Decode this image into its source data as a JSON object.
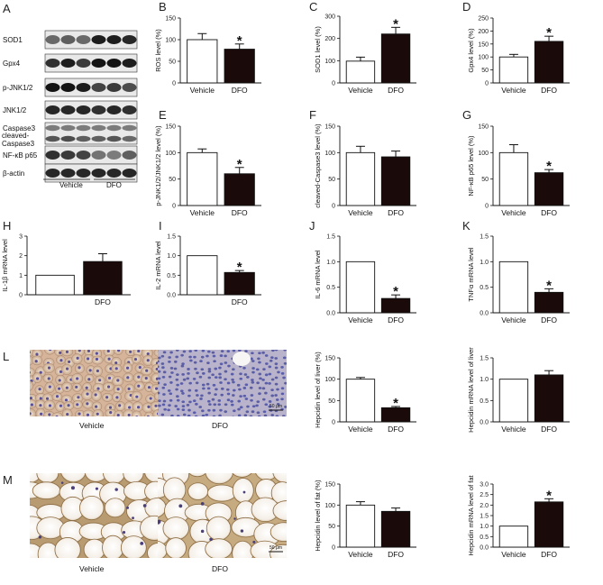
{
  "panel_labels": {
    "A": "A",
    "L": "L",
    "M": "M"
  },
  "blot": {
    "bands": [
      "SOD1",
      "Gpx4",
      "p-JNK1/2",
      "JNK1/2",
      "Caspase3",
      "cleaved-Caspase3",
      "NF-κB p65",
      "β-actin"
    ],
    "cleaved_line1": "cleaved-",
    "cleaved_line2": "Caspase3",
    "groups": [
      "Vehicle",
      "DFO"
    ]
  },
  "histology": {
    "L": {
      "left_label": "Vehicle",
      "right_label": "DFO",
      "scale": "50 μm"
    },
    "M": {
      "left_label": "Vehicle",
      "right_label": "DFO",
      "scale": "50 μm"
    }
  },
  "chart_data": [
    {
      "id": "B",
      "label": "B",
      "type": "bar",
      "categories": [
        "Vehicle",
        "DFO"
      ],
      "values": [
        100,
        78
      ],
      "errors": [
        14,
        12
      ],
      "significant": [
        false,
        true
      ],
      "ylabel": "ROS level (%)",
      "ylim": [
        0,
        150
      ],
      "yticks": [
        0,
        50,
        100,
        150
      ]
    },
    {
      "id": "C",
      "label": "C",
      "type": "bar",
      "categories": [
        "Vehicle",
        "DFO"
      ],
      "values": [
        98,
        220
      ],
      "errors": [
        18,
        30
      ],
      "significant": [
        false,
        true
      ],
      "ylabel": "SOD1 level (%)",
      "ylim": [
        0,
        300
      ],
      "yticks": [
        0,
        100,
        200,
        300
      ]
    },
    {
      "id": "D",
      "label": "D",
      "type": "bar",
      "categories": [
        "Vehicle",
        "DFO"
      ],
      "values": [
        100,
        160
      ],
      "errors": [
        10,
        20
      ],
      "significant": [
        false,
        true
      ],
      "ylabel": "Gpx4 level (%)",
      "ylim": [
        0,
        250
      ],
      "yticks": [
        0,
        50,
        100,
        150,
        200,
        250
      ]
    },
    {
      "id": "E",
      "label": "E",
      "type": "bar",
      "categories": [
        "Vehicle",
        "DFO"
      ],
      "values": [
        100,
        60
      ],
      "errors": [
        7,
        12
      ],
      "significant": [
        false,
        true
      ],
      "ylabel": "p-JNK1/2/JNK1/2 level (%)",
      "ylim": [
        0,
        150
      ],
      "yticks": [
        0,
        50,
        100,
        150
      ]
    },
    {
      "id": "F",
      "label": "F",
      "type": "bar",
      "categories": [
        "Vehicle",
        "DFO"
      ],
      "values": [
        100,
        92
      ],
      "errors": [
        12,
        11
      ],
      "significant": [
        false,
        false
      ],
      "ylabel": "cleaved-Caspase3 level (%)",
      "ylim": [
        0,
        150
      ],
      "yticks": [
        0,
        50,
        100,
        150
      ]
    },
    {
      "id": "G",
      "label": "G",
      "type": "bar",
      "categories": [
        "Vehicle",
        "DFO"
      ],
      "values": [
        100,
        62
      ],
      "errors": [
        15,
        6
      ],
      "significant": [
        false,
        true
      ],
      "ylabel": "NF-κB p65 level (%)",
      "ylim": [
        0,
        150
      ],
      "yticks": [
        0,
        50,
        100,
        150
      ]
    },
    {
      "id": "H",
      "label": "H",
      "type": "bar",
      "categories": [
        "",
        "DFO"
      ],
      "values": [
        1.0,
        1.7
      ],
      "errors": [
        0,
        0.4
      ],
      "significant": [
        false,
        false
      ],
      "ylabel": "IL-1β mRNA level",
      "ylim": [
        0,
        3
      ],
      "yticks": [
        0,
        1,
        2,
        3
      ]
    },
    {
      "id": "I",
      "label": "I",
      "type": "bar",
      "categories": [
        "",
        "DFO"
      ],
      "values": [
        1.0,
        0.57
      ],
      "errors": [
        0,
        0.05
      ],
      "significant": [
        false,
        true
      ],
      "ylabel": "IL-2 mRNA level",
      "ylim": [
        0,
        1.5
      ],
      "yticks": [
        0.0,
        0.5,
        1.0,
        1.5
      ],
      "yticklabels": [
        "0.0",
        "0.5",
        "1.0",
        "1.5"
      ]
    },
    {
      "id": "J",
      "label": "J",
      "type": "bar",
      "categories": [
        "Vehicle",
        "DFO"
      ],
      "values": [
        1.0,
        0.28
      ],
      "errors": [
        0,
        0.07
      ],
      "significant": [
        false,
        true
      ],
      "ylabel": "IL-6 mRNA level",
      "ylim": [
        0,
        1.5
      ],
      "yticks": [
        0.0,
        0.5,
        1.0,
        1.5
      ],
      "yticklabels": [
        "0.0",
        "0.5",
        "1.0",
        "1.5"
      ]
    },
    {
      "id": "K",
      "label": "K",
      "type": "bar",
      "categories": [
        "Vehicle",
        "DFO"
      ],
      "values": [
        1.0,
        0.4
      ],
      "errors": [
        0,
        0.07
      ],
      "significant": [
        false,
        true
      ],
      "ylabel": "TNFα mRNA level",
      "ylim": [
        0,
        1.5
      ],
      "yticks": [
        0.0,
        0.5,
        1.0,
        1.5
      ],
      "yticklabels": [
        "0.0",
        "0.5",
        "1.0",
        "1.5"
      ]
    },
    {
      "id": "L1",
      "label": "",
      "type": "bar",
      "categories": [
        "Vehicle",
        "DFO"
      ],
      "values": [
        100,
        33
      ],
      "errors": [
        4,
        3
      ],
      "significant": [
        false,
        true
      ],
      "ylabel": "Hepcidin level of liver (%)",
      "ylim": [
        0,
        150
      ],
      "yticks": [
        0,
        50,
        100,
        150
      ]
    },
    {
      "id": "L2",
      "label": "",
      "type": "bar",
      "categories": [
        "Vehicle",
        "DFO"
      ],
      "values": [
        1.0,
        1.1
      ],
      "errors": [
        0,
        0.1
      ],
      "significant": [
        false,
        false
      ],
      "ylabel": "Hepcidin mRNA level of liver",
      "ylim": [
        0,
        1.5
      ],
      "yticks": [
        0.0,
        0.5,
        1.0,
        1.5
      ],
      "yticklabels": [
        "0.0",
        "0.5",
        "1.0",
        "1.5"
      ]
    },
    {
      "id": "M1",
      "label": "",
      "type": "bar",
      "categories": [
        "Vehicle",
        "DFO"
      ],
      "values": [
        100,
        85
      ],
      "errors": [
        8,
        8
      ],
      "significant": [
        false,
        false
      ],
      "ylabel": "Hepcidin level of fat (%)",
      "ylim": [
        0,
        150
      ],
      "yticks": [
        0,
        50,
        100,
        150
      ]
    },
    {
      "id": "M2",
      "label": "",
      "type": "bar",
      "categories": [
        "Vehicle",
        "DFO"
      ],
      "values": [
        1.0,
        2.15
      ],
      "errors": [
        0,
        0.15
      ],
      "significant": [
        false,
        true
      ],
      "ylabel": "Hepcidin mRNA level of fat",
      "ylim": [
        0,
        3.0
      ],
      "yticks": [
        0.0,
        0.5,
        1.0,
        1.5,
        2.0,
        2.5,
        3.0
      ],
      "yticklabels": [
        "0.0",
        "0.5",
        "1.0",
        "1.5",
        "2.0",
        "2.5",
        "3.0"
      ]
    }
  ]
}
